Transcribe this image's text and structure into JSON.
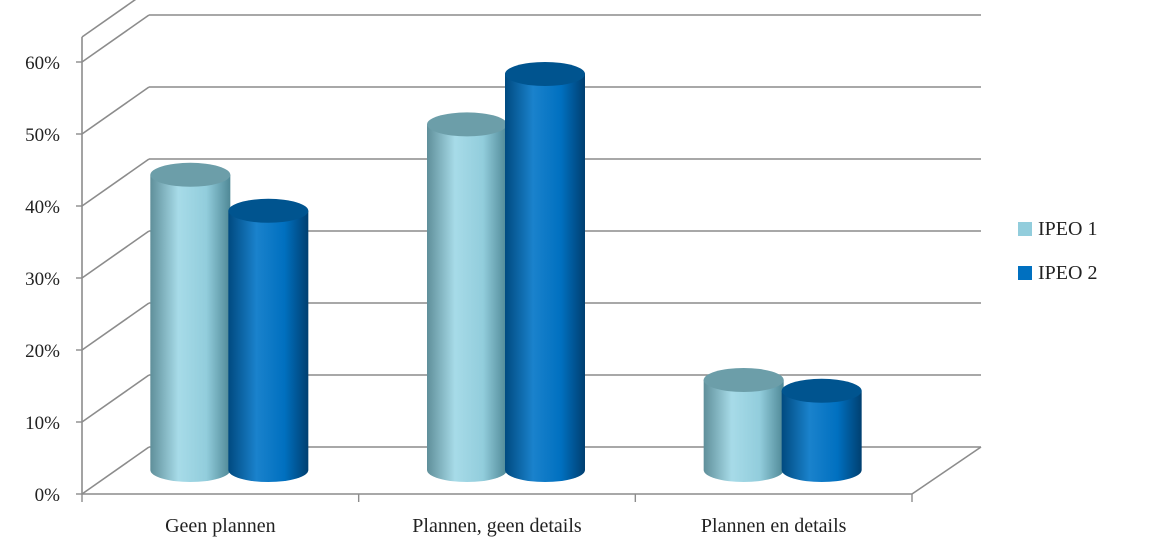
{
  "chart_data": {
    "type": "bar",
    "categories": [
      "Geen plannen",
      "Plannen, geen details",
      "Plannen en details"
    ],
    "series": [
      {
        "name": "IPEO 1",
        "values": [
          41,
          48,
          12.5
        ],
        "color": "#92cddc"
      },
      {
        "name": "IPEO 2",
        "values": [
          36,
          55,
          11
        ],
        "color": "#0070c0"
      }
    ],
    "y_ticks": [
      "0%",
      "10%",
      "20%",
      "30%",
      "40%",
      "50%",
      "60%"
    ],
    "ylim": [
      0,
      60
    ],
    "grid": true,
    "legend": "right",
    "style": "3d-cylinder"
  }
}
